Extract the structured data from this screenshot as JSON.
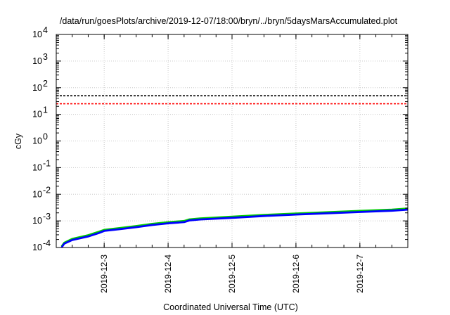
{
  "chart_data": {
    "type": "line",
    "title": "/data/run/goesPlots/archive/2019-12-07/18:00/bryn/../bryn/5daysMarsAccumulated.plot",
    "xlabel": "Coordinated Universal Time (UTC)",
    "ylabel": "cGy",
    "x_axis": {
      "type": "time",
      "range": [
        "2019-12-02T06:00",
        "2019-12-07T18:00"
      ],
      "tick_labels": [
        "2019-12-3",
        "2019-12-4",
        "2019-12-5",
        "2019-12-6",
        "2019-12-7"
      ]
    },
    "y_axis": {
      "scale": "log",
      "range": [
        0.0001,
        10000
      ],
      "tick_labels": [
        {
          "base": "10",
          "exp": "-4"
        },
        {
          "base": "10",
          "exp": "-3"
        },
        {
          "base": "10",
          "exp": "-2"
        },
        {
          "base": "10",
          "exp": "-1"
        },
        {
          "base": "10",
          "exp": "0"
        },
        {
          "base": "10",
          "exp": "1"
        },
        {
          "base": "10",
          "exp": "2"
        },
        {
          "base": "10",
          "exp": "3"
        },
        {
          "base": "10",
          "exp": "4"
        }
      ]
    },
    "grid": true,
    "reference_lines": [
      {
        "y": 50,
        "color": "#000000",
        "style": "dashed"
      },
      {
        "y": 25,
        "color": "#ff0000",
        "style": "dashed"
      }
    ],
    "series": [
      {
        "color": "#00cc00",
        "x": [
          "2019-12-02T08:00",
          "2019-12-02T09:00",
          "2019-12-02T12:00",
          "2019-12-02T18:00",
          "2019-12-02T22:00",
          "2019-12-03T00:00",
          "2019-12-03T06:00",
          "2019-12-03T12:00",
          "2019-12-03T18:00",
          "2019-12-04T00:00",
          "2019-12-04T06:00",
          "2019-12-04T08:00",
          "2019-12-04T12:00",
          "2019-12-05T00:00",
          "2019-12-05T12:00",
          "2019-12-06T00:00",
          "2019-12-06T12:00",
          "2019-12-07T00:00",
          "2019-12-07T12:00",
          "2019-12-07T18:00"
        ],
        "values": [
          0.00011,
          0.00015,
          0.00021,
          0.00029,
          0.00039,
          0.00046,
          0.00054,
          0.00064,
          0.00077,
          0.00089,
          0.00099,
          0.00114,
          0.00124,
          0.00143,
          0.00167,
          0.0019,
          0.00212,
          0.00237,
          0.00264,
          0.00292
        ]
      },
      {
        "color": "#0000ff",
        "x": [
          "2019-12-02T08:00",
          "2019-12-02T09:00",
          "2019-12-02T12:00",
          "2019-12-02T18:00",
          "2019-12-02T22:00",
          "2019-12-03T00:00",
          "2019-12-03T06:00",
          "2019-12-03T12:00",
          "2019-12-03T18:00",
          "2019-12-04T00:00",
          "2019-12-04T06:00",
          "2019-12-04T08:00",
          "2019-12-04T12:00",
          "2019-12-05T00:00",
          "2019-12-05T12:00",
          "2019-12-06T00:00",
          "2019-12-06T12:00",
          "2019-12-07T00:00",
          "2019-12-07T12:00",
          "2019-12-07T18:00"
        ],
        "values": [
          0.0001,
          0.00014,
          0.00019,
          0.00026,
          0.00035,
          0.00042,
          0.00049,
          0.00058,
          0.0007,
          0.00081,
          0.0009,
          0.00104,
          0.00113,
          0.0013,
          0.00152,
          0.00173,
          0.00193,
          0.00216,
          0.0024,
          0.00265
        ]
      }
    ]
  }
}
